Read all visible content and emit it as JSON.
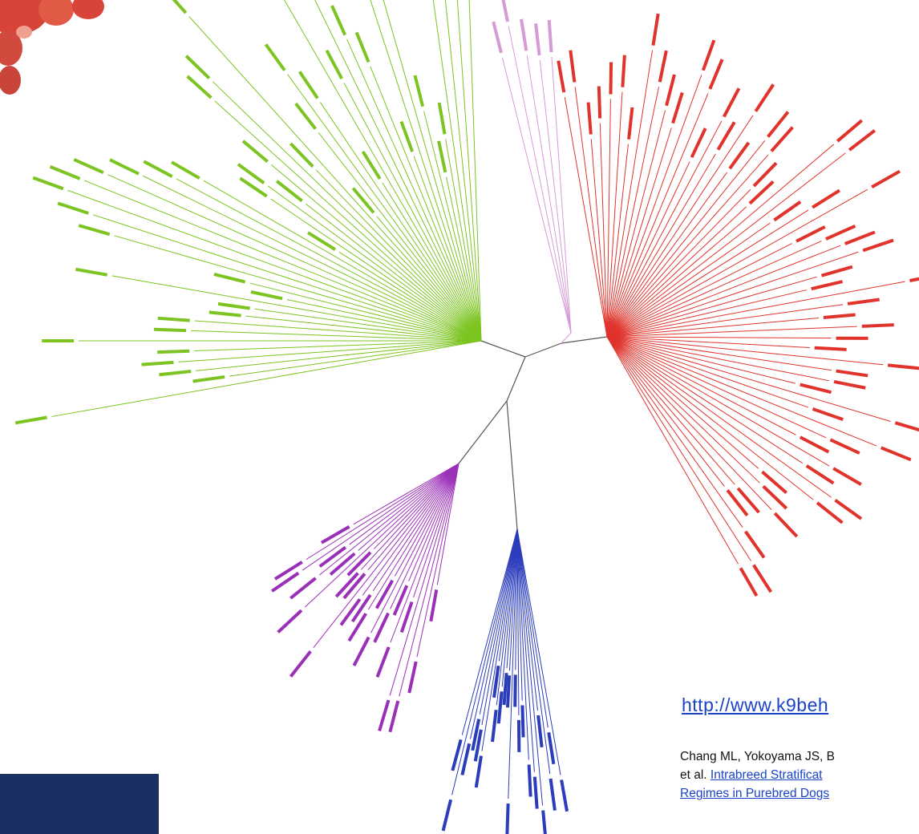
{
  "link": {
    "text": "http://www.k9beh"
  },
  "citation": {
    "line1": "Chang ML, Yokoyama JS, B",
    "line2_prefix": "et al.",
    "title_line1": "Intrabreed Stratificat",
    "title_line2": "Regimes in Purebred Dogs"
  }
}
